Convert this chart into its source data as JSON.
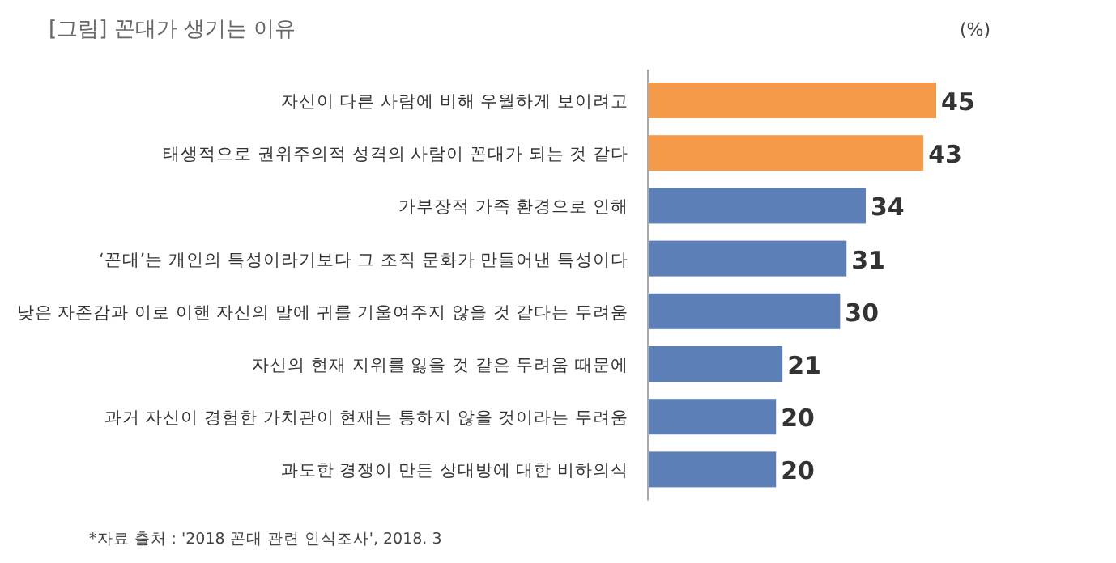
{
  "chart_data": {
    "type": "bar",
    "orientation": "horizontal",
    "title": "[그림] 꼰대가 생기는 이유",
    "xlabel": "(%)",
    "categories": [
      "자신이 다른 사람에 비해 우월하게 보이려고",
      "태생적으로 권위주의적 성격의 사람이 꼰대가 되는 것 같다",
      "가부장적 가족 환경으로 인해",
      "‘꼰대’는 개인의 특성이라기보다 그 조직 문화가 만들어낸 특성이다",
      "낮은 자존감과 이로 이핸 자신의 말에 귀를 기울여주지 않을 것 같다는 두려움",
      "자신의 현재 지위를 잃을 것 같은 두려움 때문에",
      "과거 자신이 경험한 가치관이 현재는 통하지 않을 것이라는 두려움",
      "과도한 경쟁이 만든 상대방에 대한 비하의식"
    ],
    "values": [
      45,
      43,
      34,
      31,
      30,
      21,
      20,
      20
    ],
    "colors": [
      "#f59a48",
      "#f59a48",
      "#5b7fb6",
      "#5b7fb6",
      "#5b7fb6",
      "#5b7fb6",
      "#5b7fb6",
      "#5b7fb6"
    ],
    "data_labels": true,
    "annotations": [
      "*자료 출처 : '2018 꼰대 관련 인식조사', 2018. 3"
    ]
  }
}
